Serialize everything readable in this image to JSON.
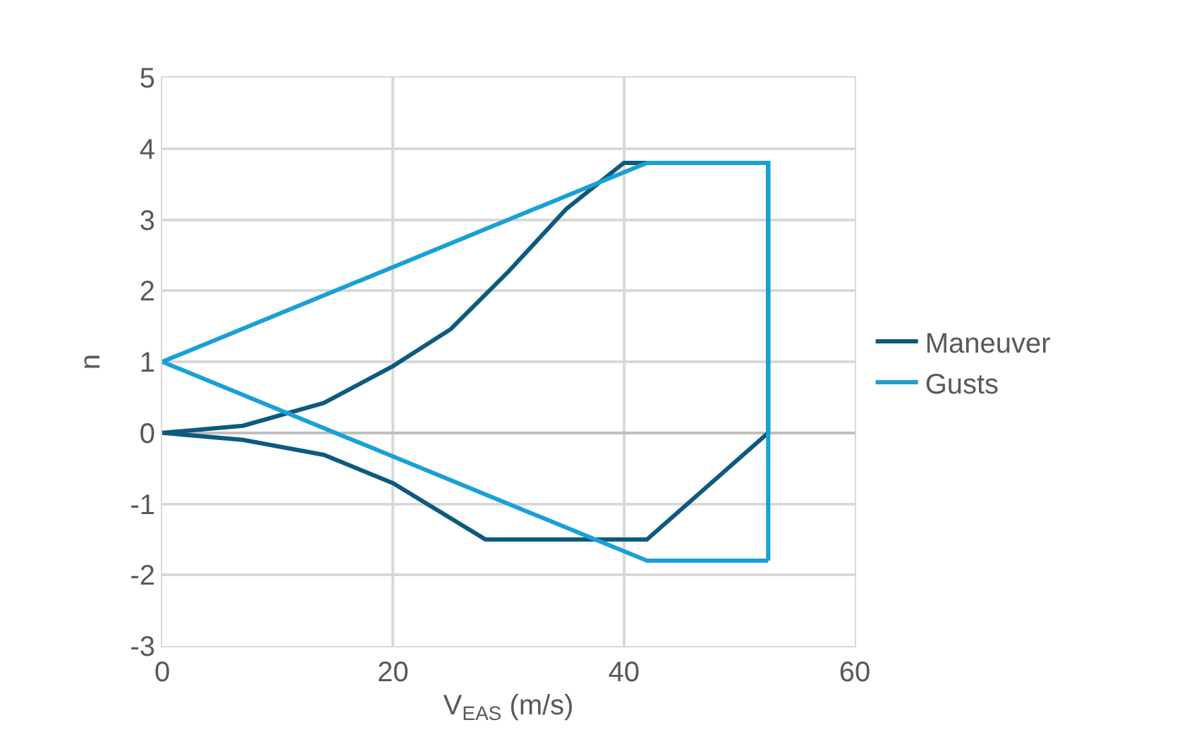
{
  "chart_data": {
    "type": "line",
    "xlabel": "V$_{EAS}$ (m/s)",
    "ylabel": "n",
    "xlim": [
      0,
      60
    ],
    "xticks": [
      0,
      20,
      40,
      60
    ],
    "ylim": [
      -3,
      5
    ],
    "yticks": [
      -3,
      -2,
      -1,
      0,
      1,
      2,
      3,
      4,
      5
    ],
    "grid": true,
    "legend": "right",
    "series": [
      {
        "name": "Maneuver",
        "color": "#0e5a7e",
        "x": [
          0,
          7,
          14,
          20,
          25,
          30,
          35,
          40,
          52.5,
          52.5
        ],
        "values": [
          0,
          0.1,
          0.42,
          0.94,
          1.46,
          2.27,
          3.15,
          3.8,
          3.8,
          0
        ]
      },
      {
        "color": "#0e5a7e",
        "x": [
          0,
          7,
          14,
          20,
          28,
          42,
          52.5
        ],
        "values": [
          0,
          -0.1,
          -0.31,
          -0.71,
          -1.5,
          -1.5,
          0
        ]
      },
      {
        "name": "Gusts",
        "color": "#1aa0d8",
        "x": [
          0,
          42,
          52.5,
          52.5
        ],
        "values": [
          1,
          3.8,
          3.8,
          -1.8
        ]
      },
      {
        "color": "#1aa0d8",
        "x": [
          0,
          42,
          52.5
        ],
        "values": [
          1,
          -1.8,
          -1.8
        ]
      }
    ]
  }
}
